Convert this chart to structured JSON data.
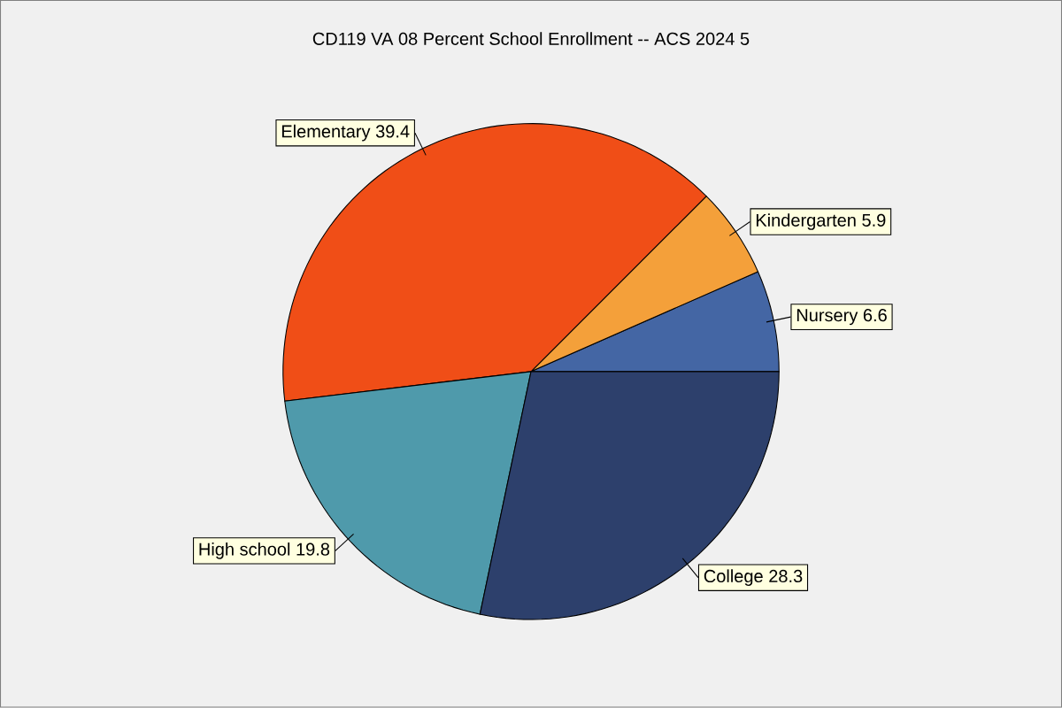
{
  "chart_data": {
    "type": "pie",
    "title": "CD119 VA 08 Percent School Enrollment -- ACS 2024 5",
    "categories": [
      "Nursery",
      "Kindergarten",
      "Elementary",
      "High school",
      "College"
    ],
    "values": [
      6.6,
      5.9,
      39.4,
      19.8,
      28.3
    ],
    "colors": [
      "#4466a4",
      "#f4a03a",
      "#f04e17",
      "#4f9aab",
      "#2d406c"
    ],
    "data_labels": true
  }
}
